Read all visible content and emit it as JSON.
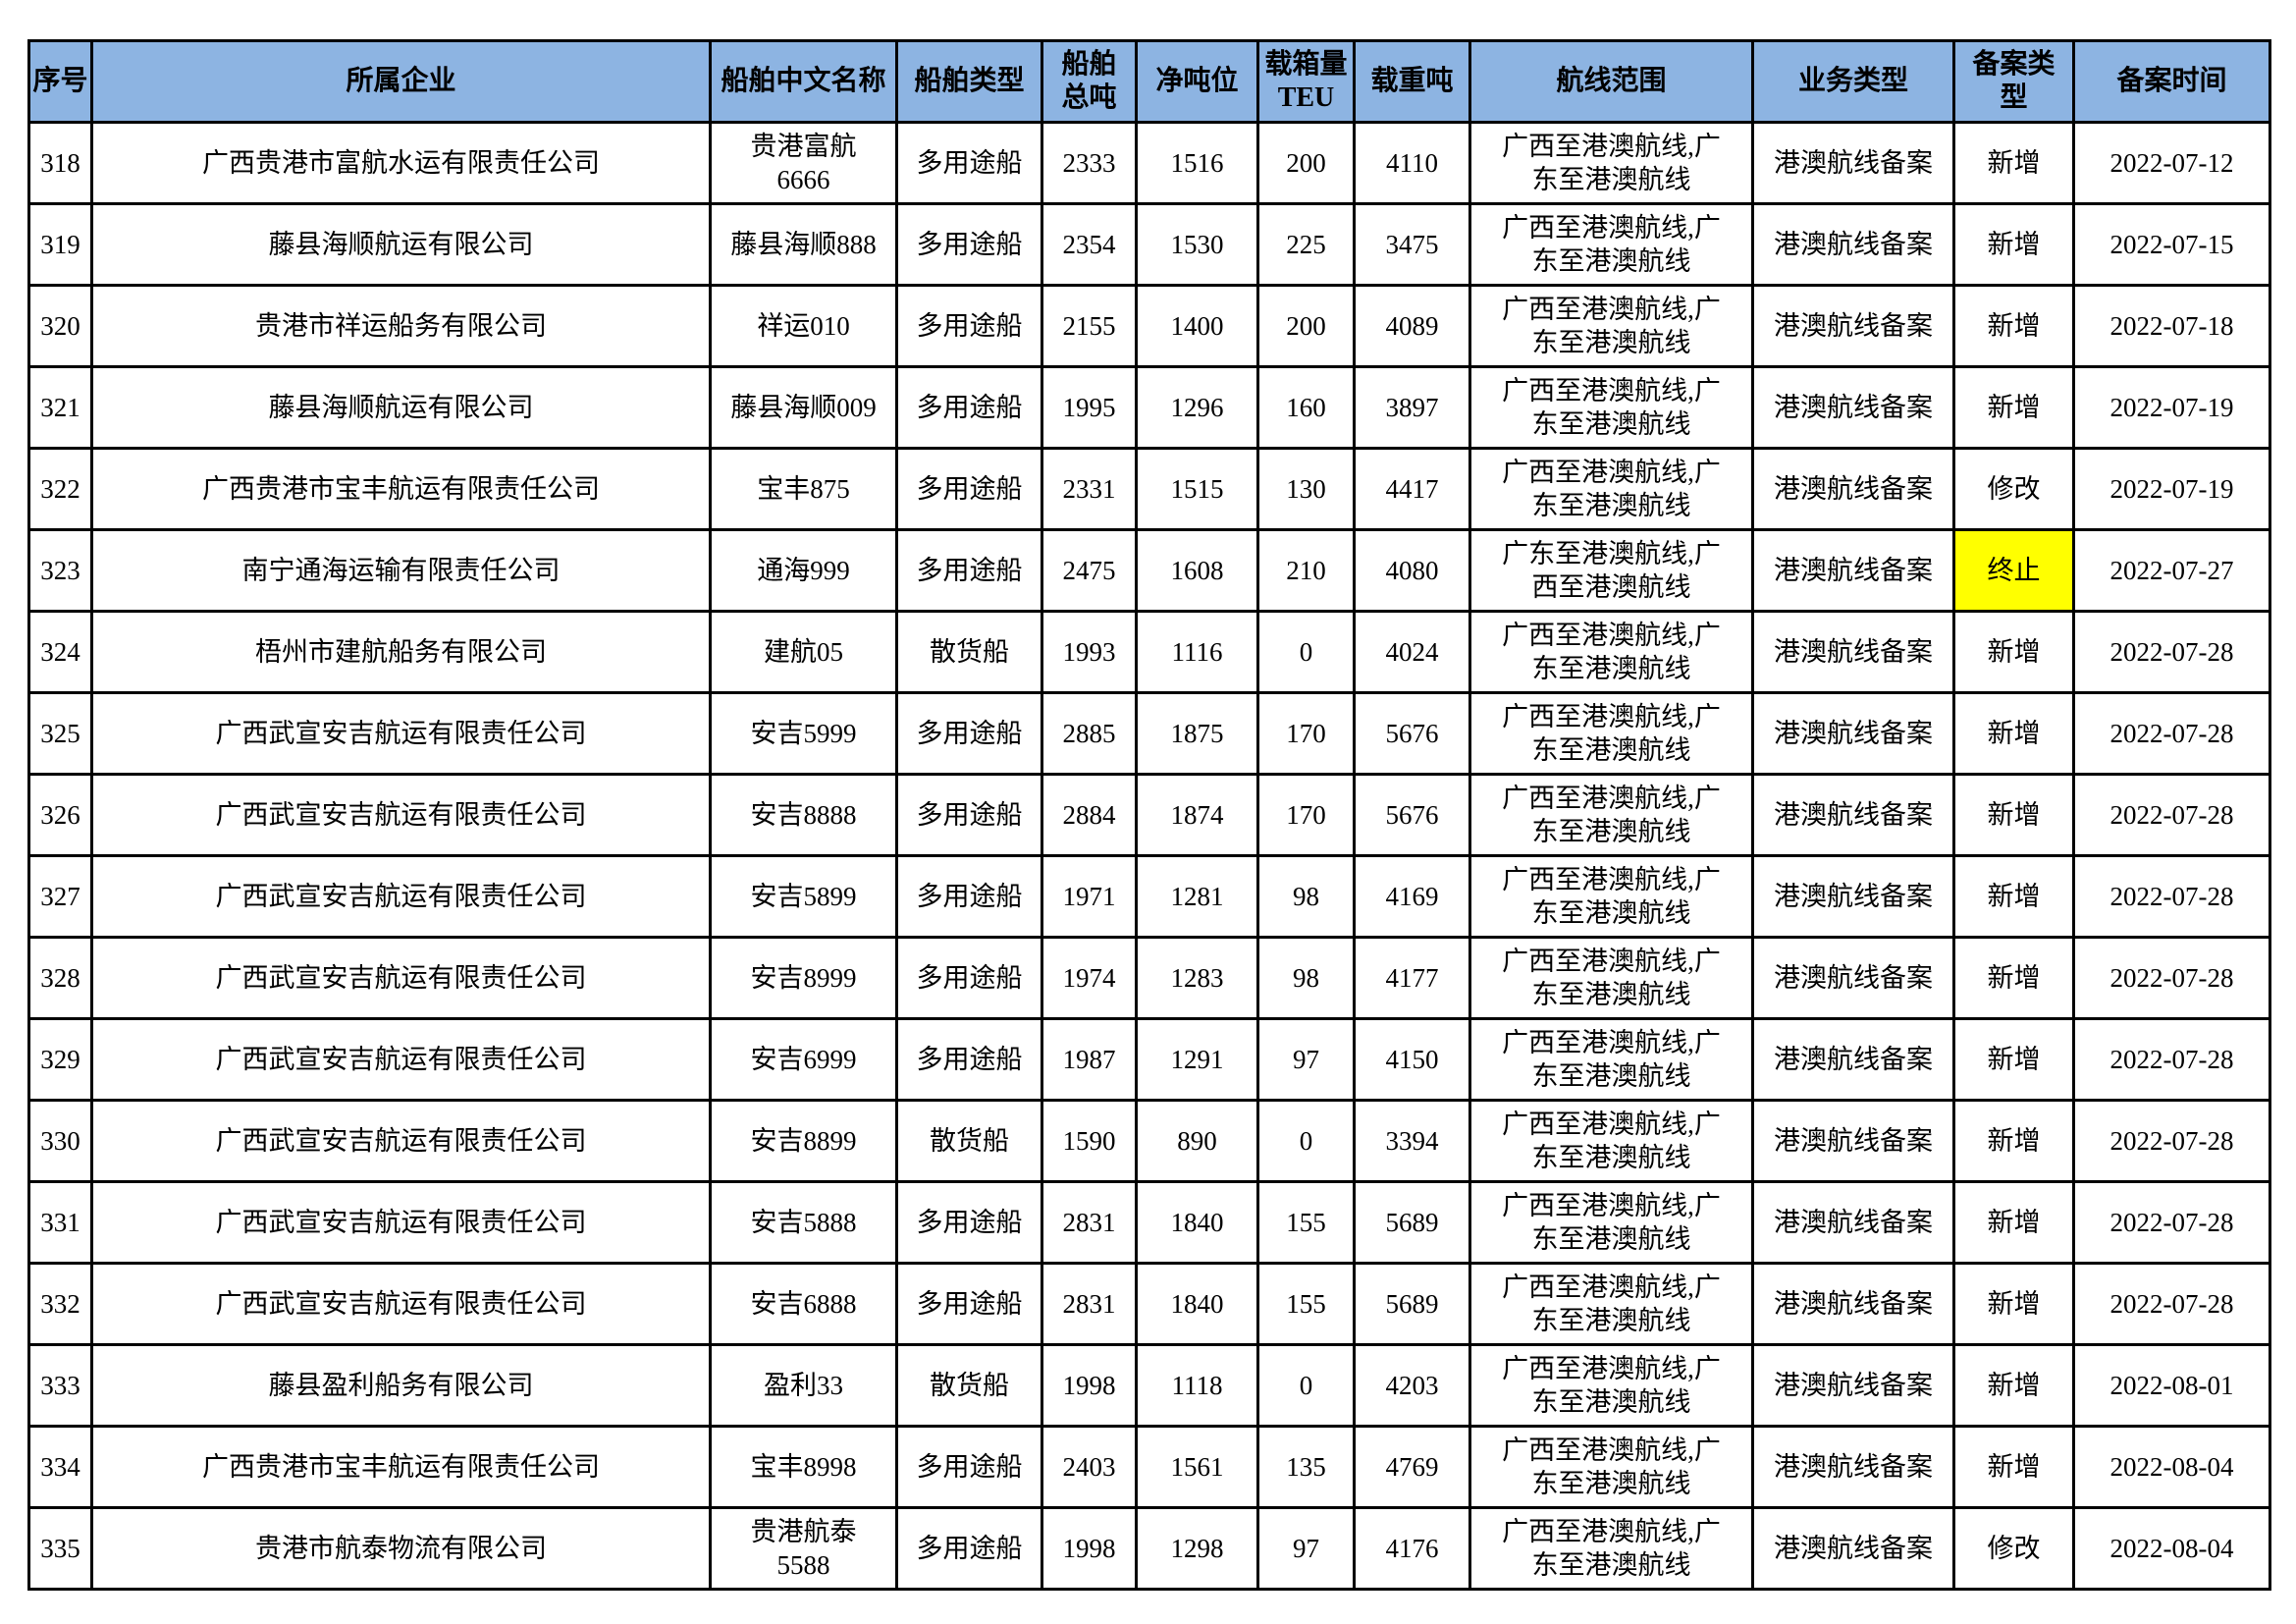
{
  "colors": {
    "header_bg": "#8DB4E2",
    "border": "#000000",
    "highlight": "#FFFF00",
    "page_bg": "#FFFFFF",
    "text": "#000000"
  },
  "table": {
    "columns": [
      {
        "key": "seq",
        "label": "序号"
      },
      {
        "key": "company",
        "label": "所属企业"
      },
      {
        "key": "ship_name",
        "label": "船舶中文名称"
      },
      {
        "key": "ship_type",
        "label": "船舶类型"
      },
      {
        "key": "gross_tonnage",
        "label": "船舶\n总吨"
      },
      {
        "key": "net_tonnage",
        "label": "净吨位"
      },
      {
        "key": "teu",
        "label": "载箱量\nTEU"
      },
      {
        "key": "dwt",
        "label": "载重吨"
      },
      {
        "key": "route",
        "label": "航线范围"
      },
      {
        "key": "business_type",
        "label": "业务类型"
      },
      {
        "key": "filing_type",
        "label": "备案类\n型"
      },
      {
        "key": "filing_date",
        "label": "备案时间"
      }
    ],
    "rows": [
      [
        "318",
        "广西贵港市富航水运有限责任公司",
        "贵港富航\n6666",
        "多用途船",
        "2333",
        "1516",
        "200",
        "4110",
        "广西至港澳航线,广\n东至港澳航线",
        "港澳航线备案",
        "新增",
        "2022-07-12"
      ],
      [
        "319",
        "藤县海顺航运有限公司",
        "藤县海顺888",
        "多用途船",
        "2354",
        "1530",
        "225",
        "3475",
        "广西至港澳航线,广\n东至港澳航线",
        "港澳航线备案",
        "新增",
        "2022-07-15"
      ],
      [
        "320",
        "贵港市祥运船务有限公司",
        "祥运010",
        "多用途船",
        "2155",
        "1400",
        "200",
        "4089",
        "广西至港澳航线,广\n东至港澳航线",
        "港澳航线备案",
        "新增",
        "2022-07-18"
      ],
      [
        "321",
        "藤县海顺航运有限公司",
        "藤县海顺009",
        "多用途船",
        "1995",
        "1296",
        "160",
        "3897",
        "广西至港澳航线,广\n东至港澳航线",
        "港澳航线备案",
        "新增",
        "2022-07-19"
      ],
      [
        "322",
        "广西贵港市宝丰航运有限责任公司",
        "宝丰875",
        "多用途船",
        "2331",
        "1515",
        "130",
        "4417",
        "广西至港澳航线,广\n东至港澳航线",
        "港澳航线备案",
        "修改",
        "2022-07-19"
      ],
      [
        "323",
        "南宁通海运输有限责任公司",
        "通海999",
        "多用途船",
        "2475",
        "1608",
        "210",
        "4080",
        "广东至港澳航线,广\n西至港澳航线",
        "港澳航线备案",
        "终止",
        "2022-07-27"
      ],
      [
        "324",
        "梧州市建航船务有限公司",
        "建航05",
        "散货船",
        "1993",
        "1116",
        "0",
        "4024",
        "广西至港澳航线,广\n东至港澳航线",
        "港澳航线备案",
        "新增",
        "2022-07-28"
      ],
      [
        "325",
        "广西武宣安吉航运有限责任公司",
        "安吉5999",
        "多用途船",
        "2885",
        "1875",
        "170",
        "5676",
        "广西至港澳航线,广\n东至港澳航线",
        "港澳航线备案",
        "新增",
        "2022-07-28"
      ],
      [
        "326",
        "广西武宣安吉航运有限责任公司",
        "安吉8888",
        "多用途船",
        "2884",
        "1874",
        "170",
        "5676",
        "广西至港澳航线,广\n东至港澳航线",
        "港澳航线备案",
        "新增",
        "2022-07-28"
      ],
      [
        "327",
        "广西武宣安吉航运有限责任公司",
        "安吉5899",
        "多用途船",
        "1971",
        "1281",
        "98",
        "4169",
        "广西至港澳航线,广\n东至港澳航线",
        "港澳航线备案",
        "新增",
        "2022-07-28"
      ],
      [
        "328",
        "广西武宣安吉航运有限责任公司",
        "安吉8999",
        "多用途船",
        "1974",
        "1283",
        "98",
        "4177",
        "广西至港澳航线,广\n东至港澳航线",
        "港澳航线备案",
        "新增",
        "2022-07-28"
      ],
      [
        "329",
        "广西武宣安吉航运有限责任公司",
        "安吉6999",
        "多用途船",
        "1987",
        "1291",
        "97",
        "4150",
        "广西至港澳航线,广\n东至港澳航线",
        "港澳航线备案",
        "新增",
        "2022-07-28"
      ],
      [
        "330",
        "广西武宣安吉航运有限责任公司",
        "安吉8899",
        "散货船",
        "1590",
        "890",
        "0",
        "3394",
        "广西至港澳航线,广\n东至港澳航线",
        "港澳航线备案",
        "新增",
        "2022-07-28"
      ],
      [
        "331",
        "广西武宣安吉航运有限责任公司",
        "安吉5888",
        "多用途船",
        "2831",
        "1840",
        "155",
        "5689",
        "广西至港澳航线,广\n东至港澳航线",
        "港澳航线备案",
        "新增",
        "2022-07-28"
      ],
      [
        "332",
        "广西武宣安吉航运有限责任公司",
        "安吉6888",
        "多用途船",
        "2831",
        "1840",
        "155",
        "5689",
        "广西至港澳航线,广\n东至港澳航线",
        "港澳航线备案",
        "新增",
        "2022-07-28"
      ],
      [
        "333",
        "藤县盈利船务有限公司",
        "盈利33",
        "散货船",
        "1998",
        "1118",
        "0",
        "4203",
        "广西至港澳航线,广\n东至港澳航线",
        "港澳航线备案",
        "新增",
        "2022-08-01"
      ],
      [
        "334",
        "广西贵港市宝丰航运有限责任公司",
        "宝丰8998",
        "多用途船",
        "2403",
        "1561",
        "135",
        "4769",
        "广西至港澳航线,广\n东至港澳航线",
        "港澳航线备案",
        "新增",
        "2022-08-04"
      ],
      [
        "335",
        "贵港市航泰物流有限公司",
        "贵港航泰\n5588",
        "多用途船",
        "1998",
        "1298",
        "97",
        "4176",
        "广西至港澳航线,广\n东至港澳航线",
        "港澳航线备案",
        "修改",
        "2022-08-04"
      ]
    ],
    "highlighted_cell": {
      "row_seq": "323",
      "column_key": "filing_type",
      "color": "#FFFF00"
    }
  }
}
